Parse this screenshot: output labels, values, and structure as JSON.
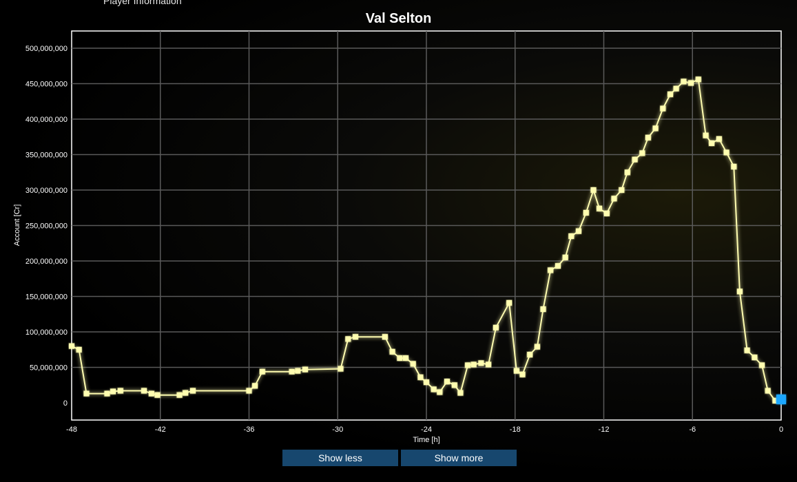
{
  "header": {
    "section_label": "Player Information"
  },
  "buttons": {
    "show_less": "Show less",
    "show_more": "Show more"
  },
  "colors": {
    "line": "#fffdb0",
    "accent_blue": "#1ea7ff",
    "grid": "#5a5a5a"
  },
  "chart_data": {
    "type": "line",
    "title": "Val Selton",
    "xlabel": "Time [h]",
    "ylabel": "Account [Cr]",
    "xlim": [
      -48,
      0
    ],
    "ylim": [
      0,
      500000000
    ],
    "x_ticks": [
      "-48",
      "-42",
      "-36",
      "-30",
      "-24",
      "-18",
      "-12",
      "-6",
      "0"
    ],
    "y_ticks": [
      "0",
      "50,000,000",
      "100,000,000",
      "150,000,000",
      "200,000,000",
      "250,000,000",
      "300,000,000",
      "350,000,000",
      "400,000,000",
      "450,000,000",
      "500,000,000"
    ],
    "grid": true,
    "series": [
      {
        "x": [
          -48,
          -47.5,
          -47,
          -45.6,
          -45.2,
          -44.7,
          -43.1,
          -42.6,
          -42.2,
          -40.7,
          -40.3,
          -39.8,
          -36,
          -35.6,
          -35.1,
          -33.1,
          -32.7,
          -32.2,
          -29.8,
          -29.3,
          -28.8,
          -26.8,
          -26.3,
          -25.8,
          -25.4,
          -24.9,
          -24.4,
          -24,
          -23.5,
          -23.1,
          -22.6,
          -22.1,
          -21.7,
          -21.2,
          -20.8,
          -20.3,
          -19.8,
          -19.3,
          -18.4,
          -17.9,
          -17.5,
          -17,
          -16.5,
          -16.1,
          -15.6,
          -15.1,
          -14.6,
          -14.2,
          -13.7,
          -13.2,
          -12.7,
          -12.3,
          -11.8,
          -11.3,
          -10.8,
          -10.4,
          -9.9,
          -9.4,
          -9,
          -8.5,
          -8,
          -7.5,
          -7.1,
          -6.6,
          -6.1,
          -5.6,
          -5.1,
          -4.7,
          -4.2,
          -3.7,
          -3.2,
          -2.8,
          -2.3,
          -1.8,
          -1.3,
          -0.9,
          -0.4
        ],
        "y": [
          80000000,
          75000000,
          13000000,
          13000000,
          16000000,
          17000000,
          17000000,
          13000000,
          11000000,
          11000000,
          14000000,
          17000000,
          17000000,
          24000000,
          44000000,
          44000000,
          45000000,
          47000000,
          48000000,
          90000000,
          93000000,
          93000000,
          72000000,
          63000000,
          63000000,
          55000000,
          36000000,
          29000000,
          19000000,
          15000000,
          30000000,
          25000000,
          14000000,
          53000000,
          54000000,
          56000000,
          54000000,
          106000000,
          141000000,
          45000000,
          40000000,
          68000000,
          79000000,
          132000000,
          187000000,
          193000000,
          205000000,
          235000000,
          242000000,
          268000000,
          300000000,
          274000000,
          267000000,
          288000000,
          300000000,
          325000000,
          343000000,
          352000000,
          374000000,
          387000000,
          415000000,
          435000000,
          443000000,
          453000000,
          451000000,
          456000000,
          377000000,
          366000000,
          372000000,
          353000000,
          333000000,
          157000000,
          74000000,
          64000000,
          53000000,
          17000000,
          3000000
        ]
      }
    ]
  }
}
